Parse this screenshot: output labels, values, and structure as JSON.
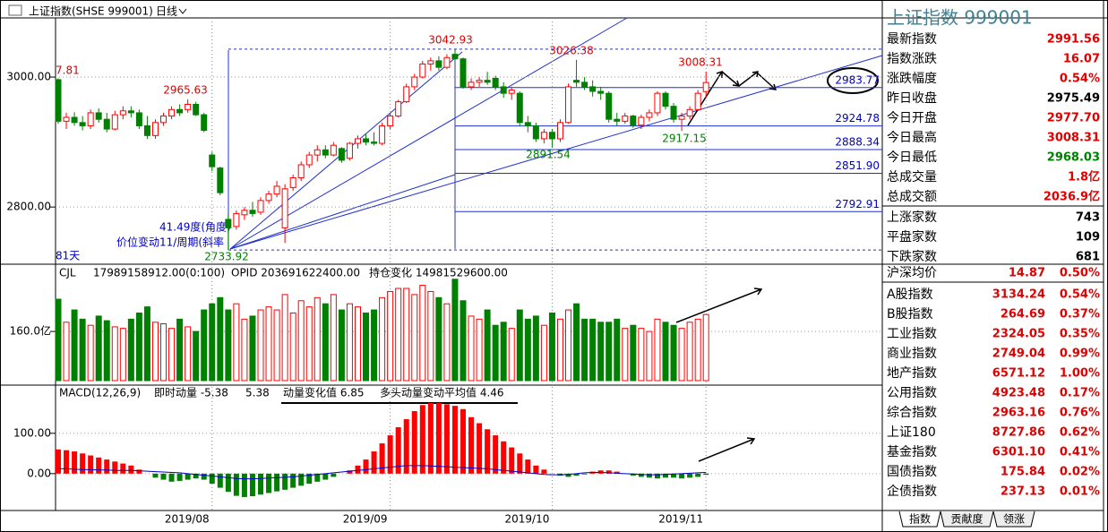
{
  "header": {
    "title": "上证指数(SHSE 999001)",
    "period": "日线"
  },
  "chart_data": {
    "type": "candlestick",
    "categories": [
      null,
      null,
      null,
      null,
      null,
      null,
      null,
      null,
      null,
      null,
      null,
      null,
      null,
      null,
      null,
      null,
      null,
      null,
      null,
      "2019/08",
      null,
      null,
      null,
      null,
      null,
      null,
      null,
      null,
      null,
      null,
      null,
      null,
      null,
      null,
      null,
      null,
      null,
      null,
      null,
      null,
      null,
      "2019/09",
      null,
      null,
      null,
      null,
      null,
      null,
      null,
      null,
      null,
      null,
      null,
      null,
      null,
      null,
      null,
      null,
      null,
      null,
      null,
      "2019/10",
      null,
      null,
      null,
      null,
      null,
      null,
      null,
      null,
      null,
      null,
      null,
      null,
      null,
      null,
      null,
      null,
      null,
      null,
      "2019/11"
    ],
    "open": [
      2996,
      2932,
      2938,
      2930,
      2925,
      2945,
      2935,
      2920,
      2942,
      2948,
      2945,
      2925,
      2910,
      2930,
      2940,
      2950,
      2950,
      2958,
      2942,
      2880,
      2860,
      2781,
      2770,
      2788,
      2795,
      2792,
      2810,
      2820,
      2768,
      2830,
      2845,
      2865,
      2880,
      2888,
      2880,
      2890,
      2875,
      2898,
      2905,
      2900,
      2898,
      2925,
      2940,
      2962,
      2985,
      3000,
      3020,
      3025,
      3015,
      3035,
      3028,
      2985,
      2992,
      2995,
      2998,
      2985,
      2975,
      2975,
      2930,
      2925,
      2905,
      2915,
      2905,
      2930,
      2995,
      2992,
      2985,
      2978,
      2975,
      2935,
      2932,
      2940,
      2926,
      2938,
      2945,
      2975,
      2955,
      2935,
      2940,
      2950,
      2977.7
    ],
    "high": [
      2998,
      2945,
      2946,
      2940,
      2950,
      2952,
      2945,
      2948,
      2955,
      2955,
      2950,
      2940,
      2935,
      2945,
      2955,
      2958,
      2965.63,
      2962,
      2945,
      2885,
      2862,
      2790,
      2795,
      2800,
      2808,
      2815,
      2825,
      2840,
      2835,
      2850,
      2870,
      2885,
      2895,
      2895,
      2900,
      2892,
      2900,
      2910,
      2912,
      2915,
      2930,
      2945,
      2965,
      2990,
      3005,
      3025,
      3030,
      3032,
      3035,
      3042.93,
      3030,
      2998,
      3000,
      3008,
      3002,
      2992,
      2985,
      2978,
      2940,
      2930,
      2920,
      2920,
      2935,
      2990,
      3026.38,
      3000,
      2995,
      2985,
      2978,
      2945,
      2945,
      2942,
      2942,
      2950,
      2978,
      2978,
      2960,
      2945,
      2955,
      2980,
      3008.31
    ],
    "low": [
      2928,
      2920,
      2925,
      2918,
      2920,
      2930,
      2915,
      2918,
      2935,
      2938,
      2920,
      2905,
      2905,
      2925,
      2935,
      2940,
      2945,
      2940,
      2915,
      2855,
      2818,
      2733.92,
      2765,
      2780,
      2785,
      2788,
      2805,
      2815,
      2745,
      2825,
      2840,
      2860,
      2870,
      2875,
      2878,
      2868,
      2872,
      2890,
      2895,
      2895,
      2895,
      2920,
      2938,
      2960,
      2980,
      2998,
      3010,
      3010,
      3012,
      3025,
      2982,
      2980,
      2985,
      2988,
      2980,
      2968,
      2965,
      2925,
      2915,
      2900,
      2898,
      2891.54,
      2900,
      2928,
      2985,
      2980,
      2970,
      2965,
      2930,
      2925,
      2928,
      2922,
      2920,
      2932,
      2940,
      2950,
      2930,
      2917.15,
      2935,
      2948,
      2968.03
    ],
    "close": [
      2932,
      2938,
      2930,
      2925,
      2945,
      2935,
      2920,
      2942,
      2948,
      2945,
      2925,
      2910,
      2930,
      2940,
      2950,
      2945,
      2958,
      2942,
      2918,
      2862,
      2822,
      2768,
      2790,
      2795,
      2790,
      2810,
      2820,
      2832,
      2828,
      2845,
      2865,
      2880,
      2888,
      2880,
      2895,
      2872,
      2898,
      2905,
      2900,
      2898,
      2925,
      2940,
      2962,
      2985,
      3000,
      3020,
      3025,
      3015,
      3030,
      3028,
      2985,
      2992,
      2995,
      2992,
      2985,
      2975,
      2980,
      2930,
      2925,
      2905,
      2915,
      2905,
      2930,
      2985,
      2992,
      2985,
      2978,
      2975,
      2935,
      2932,
      2940,
      2926,
      2938,
      2945,
      2975,
      2955,
      2935,
      2940,
      2950,
      2975,
      2991.56
    ],
    "up_color": "#ff0000",
    "down_color": "#008000",
    "ylim": [
      2712,
      3091
    ],
    "yticks": [
      {
        "value": 3000,
        "label": "3000.00"
      },
      {
        "value": 2800,
        "label": "2800.00"
      }
    ],
    "annotations": [
      "3042.93",
      "3026.38",
      "3008.31",
      "2965.63",
      "7.81",
      "2891.54",
      "2917.15",
      "2733.92",
      "41.49度(角度)",
      "价位变动11/周期(斜率",
      "81天"
    ],
    "fib_levels": [
      {
        "value": 2983.77,
        "label": "2983.77"
      },
      {
        "value": 2924.78,
        "label": "2924.78"
      },
      {
        "value": 2888.34,
        "label": "2888.34"
      },
      {
        "value": 2851.9,
        "label": "2851.90"
      },
      {
        "value": 2792.91,
        "label": "2792.91"
      }
    ],
    "volume": {
      "title": "CJL",
      "stats": [
        "17989158912.00(0:100)",
        "OPID 203691622400.00",
        "持仓变化 14981529600.00"
      ],
      "values": [
        265,
        190,
        230,
        200,
        180,
        210,
        195,
        175,
        170,
        200,
        220,
        240,
        190,
        185,
        170,
        200,
        175,
        160,
        230,
        250,
        270,
        230,
        250,
        200,
        210,
        230,
        240,
        230,
        280,
        220,
        260,
        240,
        270,
        250,
        280,
        230,
        250,
        240,
        220,
        230,
        270,
        290,
        300,
        300,
        280,
        310,
        290,
        270,
        250,
        330,
        260,
        210,
        200,
        230,
        180,
        190,
        170,
        230,
        200,
        210,
        180,
        220,
        200,
        230,
        250,
        200,
        200,
        190,
        190,
        200,
        170,
        180,
        170,
        160,
        200,
        190,
        180,
        170,
        190,
        200,
        215
      ],
      "ylim": [
        0,
        370
      ],
      "yticks": [
        {
          "value": 160,
          "label": "160.0亿"
        }
      ]
    },
    "macd": {
      "title": "MACD(12,26,9)",
      "stats": [
        "即时动量 -5.38",
        "5.38",
        "动量变化值 6.85",
        "多头动量变动平均值 4.46"
      ],
      "histogram": [
        60,
        58,
        55,
        50,
        45,
        40,
        35,
        30,
        25,
        20,
        10,
        0,
        -10,
        -15,
        -20,
        -18,
        -15,
        -12,
        -15,
        -25,
        -35,
        -45,
        -55,
        -58,
        -56,
        -52,
        -48,
        -44,
        -40,
        -35,
        -30,
        -25,
        -20,
        -15,
        -8,
        0,
        8,
        20,
        35,
        55,
        75,
        95,
        115,
        135,
        155,
        170,
        175,
        175,
        172,
        168,
        160,
        140,
        125,
        110,
        95,
        80,
        65,
        50,
        35,
        20,
        10,
        0,
        -5,
        -8,
        -5,
        -2,
        5,
        8,
        8,
        5,
        0,
        -5,
        -8,
        -10,
        -12,
        -10,
        -10,
        -12,
        -10,
        -8,
        -3
      ],
      "dif": [
        12,
        12,
        11,
        10,
        10,
        9,
        9,
        8,
        8,
        8,
        7,
        6,
        5,
        4,
        3,
        2,
        0,
        -2,
        -4,
        -6,
        -8,
        -10,
        -12,
        -13,
        -13,
        -12,
        -11,
        -10,
        -9,
        -8,
        -6,
        -4,
        -2,
        0,
        2,
        4,
        6,
        8,
        10,
        12,
        14,
        16,
        18,
        20,
        20,
        20,
        19,
        18,
        17,
        16,
        15,
        14,
        13,
        12,
        10,
        8,
        6,
        4,
        2,
        0,
        -2,
        -3,
        -3,
        -2,
        0,
        2,
        3,
        3,
        2,
        1,
        0,
        -1,
        -2,
        -3,
        -3,
        -2,
        -1,
        0,
        1,
        2,
        3
      ],
      "line_color": "#0000cc",
      "ylim": [
        -87,
        215
      ],
      "yticks": [
        {
          "value": 100,
          "label": "100.00"
        },
        {
          "value": 0,
          "label": "0.00"
        }
      ]
    }
  },
  "quote_panel": {
    "title": "上证指数 999001",
    "rows": [
      {
        "label": "最新指数",
        "value": "2991.56",
        "color": "#e00000"
      },
      {
        "label": "指数涨跌",
        "value": "16.07",
        "color": "#e00000"
      },
      {
        "label": "涨跌幅度",
        "value": "0.54%",
        "color": "#e00000"
      },
      {
        "label": "昨日收盘",
        "value": "2975.49",
        "color": "#000000"
      },
      {
        "label": "今日开盘",
        "value": "2977.70",
        "color": "#e00000"
      },
      {
        "label": "今日最高",
        "value": "3008.31",
        "color": "#e00000"
      },
      {
        "label": "今日最低",
        "value": "2968.03",
        "color": "#008000"
      },
      {
        "label": "总成交量",
        "value": "1.8亿",
        "color": "#e00000"
      },
      {
        "label": "总成交额",
        "value": "2036.9亿",
        "color": "#e00000"
      },
      {
        "label": "上涨家数",
        "value": "743",
        "color": "#000000"
      },
      {
        "label": "平盘家数",
        "value": "109",
        "color": "#000000"
      },
      {
        "label": "下跌家数",
        "value": "681",
        "color": "#000000"
      }
    ],
    "indices": [
      {
        "name": "沪深均价",
        "value": "14.87",
        "change": "0.50%"
      },
      {
        "name": "A股指数",
        "value": "3134.24",
        "change": "0.54%"
      },
      {
        "name": "B股指数",
        "value": "264.69",
        "change": "0.37%"
      },
      {
        "name": "工业指数",
        "value": "2324.05",
        "change": "0.35%"
      },
      {
        "name": "商业指数",
        "value": "2749.04",
        "change": "0.99%"
      },
      {
        "name": "地产指数",
        "value": "6571.12",
        "change": "1.00%"
      },
      {
        "name": "公用指数",
        "value": "4923.48",
        "change": "0.17%"
      },
      {
        "name": "综合指数",
        "value": "2963.16",
        "change": "0.76%"
      },
      {
        "name": "上证180",
        "value": "8727.86",
        "change": "0.62%"
      },
      {
        "name": "基金指数",
        "value": "6301.10",
        "change": "0.41%"
      },
      {
        "name": "国债指数",
        "value": "175.84",
        "change": "0.02%"
      },
      {
        "name": "企债指数",
        "value": "237.13",
        "change": "0.01%"
      }
    ],
    "tabs": [
      "指数",
      "贡献度",
      "领涨"
    ]
  }
}
